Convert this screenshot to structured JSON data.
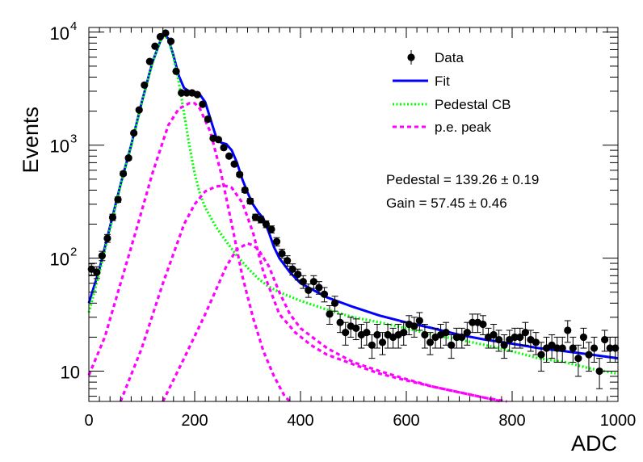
{
  "chart_data": {
    "type": "scatter",
    "title": "",
    "xlabel": "ADC",
    "ylabel": "Events",
    "xlim": [
      0,
      1000
    ],
    "ylim": [
      5.4,
      11000
    ],
    "y_scale": "log",
    "grid": false,
    "legend_position": "top-right",
    "x_ticks": [
      {
        "value": 0,
        "label": "0"
      },
      {
        "value": 200,
        "label": "200"
      },
      {
        "value": 400,
        "label": "400"
      },
      {
        "value": 600,
        "label": "600"
      },
      {
        "value": 800,
        "label": "800"
      },
      {
        "value": 1000,
        "label": "1000"
      }
    ],
    "y_ticks": [
      {
        "value": 10,
        "base": "10",
        "exp": ""
      },
      {
        "value": 100,
        "base": "10",
        "exp": "2"
      },
      {
        "value": 1000,
        "base": "10",
        "exp": "3"
      },
      {
        "value": 10000,
        "base": "10",
        "exp": "4"
      }
    ],
    "annotations": [
      {
        "text": "Pedestal = 139.26 ± 0.19"
      },
      {
        "text": "Gain = 57.45 ± 0.46"
      }
    ],
    "series": [
      {
        "name": "Data",
        "kind": "points-with-error-bars",
        "color": "#000000",
        "x": [
          5,
          15,
          25,
          35,
          45,
          55,
          65,
          75,
          85,
          95,
          105,
          115,
          125,
          135,
          145,
          155,
          165,
          175,
          185,
          195,
          205,
          215,
          225,
          235,
          245,
          255,
          265,
          275,
          285,
          295,
          305,
          315,
          325,
          335,
          345,
          355,
          365,
          375,
          385,
          395,
          405,
          415,
          425,
          435,
          445,
          455,
          465,
          475,
          485,
          495,
          505,
          515,
          525,
          535,
          545,
          555,
          565,
          575,
          585,
          595,
          605,
          615,
          625,
          635,
          645,
          655,
          665,
          675,
          685,
          695,
          705,
          715,
          725,
          735,
          745,
          755,
          765,
          775,
          785,
          795,
          805,
          815,
          825,
          835,
          845,
          855,
          865,
          875,
          885,
          895,
          905,
          915,
          925,
          935,
          945,
          955,
          965,
          975,
          985,
          995
        ],
        "y": [
          80,
          75,
          105,
          150,
          230,
          330,
          560,
          770,
          1280,
          2050,
          3400,
          5500,
          7500,
          9100,
          9800,
          8300,
          4500,
          2900,
          2900,
          2900,
          2800,
          2300,
          1700,
          1150,
          1120,
          950,
          800,
          680,
          550,
          400,
          320,
          230,
          220,
          200,
          180,
          140,
          110,
          95,
          80,
          72,
          62,
          52,
          62,
          55,
          48,
          32,
          40,
          27,
          22,
          25,
          24,
          21,
          22,
          17,
          21,
          18,
          21,
          20,
          21,
          22,
          26,
          25,
          28,
          21,
          18,
          20,
          21,
          22,
          17,
          20,
          20,
          22,
          27,
          27,
          26,
          20,
          21,
          19,
          17,
          19,
          20,
          20,
          22,
          19,
          18,
          14,
          16,
          17,
          16,
          16,
          23,
          16,
          13,
          20,
          14,
          16,
          10,
          19,
          16,
          16
        ],
        "err": [
          9,
          9,
          10,
          12,
          15,
          18,
          24,
          28,
          36,
          45,
          58,
          74,
          87,
          95,
          99,
          91,
          67,
          54,
          54,
          54,
          53,
          48,
          41,
          34,
          33,
          31,
          28,
          26,
          23,
          20,
          18,
          15,
          15,
          14,
          13,
          12,
          10,
          10,
          9,
          8,
          8,
          7,
          8,
          7,
          7,
          6,
          6,
          5,
          5,
          5,
          5,
          5,
          5,
          4,
          5,
          4,
          5,
          4,
          5,
          5,
          5,
          5,
          5,
          5,
          4,
          4,
          5,
          5,
          4,
          4,
          4,
          5,
          5,
          5,
          5,
          4,
          5,
          4,
          4,
          4,
          4,
          4,
          5,
          4,
          4,
          4,
          4,
          4,
          4,
          4,
          5,
          4,
          4,
          4,
          4,
          4,
          3,
          4,
          4,
          4
        ]
      },
      {
        "name": "Fit",
        "kind": "line",
        "style": "solid",
        "color": "#0000ff",
        "x": [
          0,
          20,
          40,
          60,
          80,
          100,
          120,
          140,
          150,
          160,
          170,
          180,
          190,
          200,
          210,
          220,
          230,
          240,
          250,
          260,
          270,
          280,
          290,
          300,
          310,
          320,
          330,
          340,
          350,
          360,
          380,
          400,
          450,
          500,
          550,
          600,
          650,
          700,
          750,
          800,
          850,
          900,
          950,
          1000
        ],
        "y": [
          40,
          80,
          190,
          450,
          1000,
          2400,
          5400,
          9600,
          8800,
          6200,
          4100,
          3200,
          3000,
          2950,
          2800,
          2400,
          1700,
          1200,
          1050,
          1020,
          900,
          700,
          500,
          380,
          300,
          255,
          225,
          170,
          125,
          100,
          75,
          60,
          45,
          37,
          31,
          27,
          24,
          21,
          19,
          17.5,
          16,
          15,
          14,
          13
        ]
      },
      {
        "name": "Pedestal CB",
        "kind": "line",
        "style": "dotted",
        "color": "#00ff00",
        "x": [
          0,
          20,
          40,
          60,
          80,
          100,
          120,
          140,
          150,
          160,
          170,
          180,
          190,
          200,
          210,
          220,
          240,
          260,
          280,
          300,
          320,
          340,
          360,
          400,
          450,
          500,
          550,
          600,
          650,
          700,
          750,
          800,
          850,
          900,
          950,
          1000
        ],
        "y": [
          33,
          75,
          180,
          440,
          980,
          2350,
          5300,
          9500,
          8700,
          6000,
          3600,
          1900,
          1000,
          560,
          370,
          280,
          190,
          140,
          105,
          82,
          66,
          56,
          50,
          42,
          35,
          30,
          27,
          24,
          21,
          19,
          17,
          15,
          13,
          12,
          10.5,
          9.5
        ]
      },
      {
        "name": "p.e. peak",
        "kind": "line",
        "style": "dashed",
        "color": "#ff00ff",
        "segments": [
          {
            "x": [
              0,
              30,
              60,
              90,
              120,
              150,
              170,
              190,
              200,
              210,
              230,
              250,
              270,
              290,
              310,
              330,
              350,
              370,
              380
            ],
            "y": [
              9.2,
              20,
              60,
              180,
              560,
              1500,
              2100,
              2350,
              2350,
              2100,
              1300,
              560,
              200,
              70,
              30,
              15,
              9,
              6,
              5.4
            ]
          },
          {
            "x": [
              60,
              100,
              140,
              180,
              200,
              220,
              240,
              255,
              270,
              290,
              310,
              330,
              360,
              390,
              420,
              450,
              500,
              550,
              600,
              650,
              700,
              750,
              790
            ],
            "y": [
              5.4,
              16,
              60,
              200,
              300,
              390,
              430,
              440,
              420,
              310,
              170,
              75,
              32,
              22,
              17,
              14,
              11.5,
              9.5,
              8.3,
              7.3,
              6.5,
              5.8,
              5.4
            ]
          },
          {
            "x": [
              140,
              180,
              220,
              260,
              280,
              300,
              310,
              320,
              340,
              360,
              380,
              400,
              450,
              500,
              550,
              600,
              650,
              700,
              750,
              780
            ],
            "y": [
              5.4,
              13,
              32,
              85,
              120,
              135,
              130,
              120,
              85,
              50,
              32,
              24,
              16,
              12,
              10,
              8.5,
              7.3,
              6.5,
              5.8,
              5.4
            ]
          }
        ]
      }
    ]
  }
}
